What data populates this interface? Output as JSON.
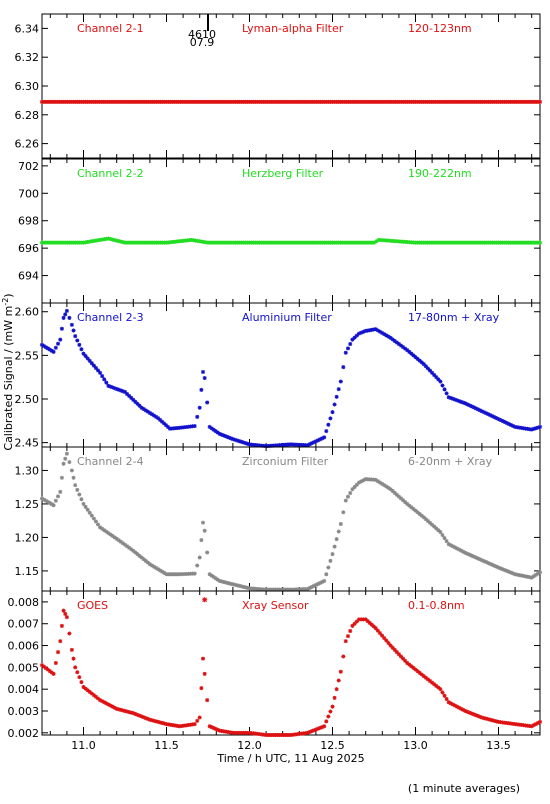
{
  "y_axis_label": "Calibrated Signal / (mW m",
  "y_axis_label_sup": "-2",
  "y_axis_label_end": ")",
  "x_axis_label": "Time / h UTC, 11 Aug 2025",
  "footnote": "(1 minute averages)",
  "marker_top": "4610",
  "marker_bottom": "07.9",
  "x_ticks": [
    "11.0",
    "11.5",
    "12.0",
    "12.5",
    "13.0",
    "13.5"
  ],
  "chart_data": [
    {
      "type": "scatter",
      "channel_label": "Channel 2-1",
      "filter_label": "Lyman-alpha Filter",
      "band_label": "120-123nm",
      "color": "#dd1111",
      "xlim": [
        10.75,
        13.75
      ],
      "ylim": [
        6.25,
        6.35
      ],
      "y_ticks": [
        "6.26",
        "6.28",
        "6.30",
        "6.32",
        "6.34"
      ],
      "y_tick_values": [
        6.26,
        6.28,
        6.3,
        6.32,
        6.34
      ],
      "x": [
        10.75,
        11.0,
        11.25,
        11.5,
        11.75,
        12.0,
        12.25,
        12.5,
        12.75,
        13.0,
        13.25,
        13.5,
        13.75
      ],
      "y": [
        6.289,
        6.289,
        6.289,
        6.289,
        6.289,
        6.289,
        6.289,
        6.289,
        6.289,
        6.289,
        6.289,
        6.289,
        6.289
      ]
    },
    {
      "type": "scatter",
      "channel_label": "Channel 2-2",
      "filter_label": "Herzberg Filter",
      "band_label": "190-222nm",
      "color": "#22dd22",
      "xlim": [
        10.75,
        13.75
      ],
      "ylim": [
        692,
        702.5
      ],
      "y_ticks": [
        "694",
        "696",
        "698",
        "700",
        "702"
      ],
      "y_tick_values": [
        694,
        696,
        698,
        700,
        702
      ],
      "x": [
        10.75,
        11.0,
        11.15,
        11.25,
        11.5,
        11.65,
        11.75,
        12.0,
        12.25,
        12.5,
        12.75,
        12.78,
        13.0,
        13.25,
        13.5,
        13.75
      ],
      "y": [
        696.4,
        696.4,
        696.7,
        696.4,
        696.4,
        696.6,
        696.4,
        696.4,
        696.4,
        696.4,
        696.4,
        696.6,
        696.4,
        696.4,
        696.4,
        696.4
      ]
    },
    {
      "type": "scatter",
      "channel_label": "Channel 2-3",
      "filter_label": "Aluminium Filter",
      "band_label": "17-80nm + Xray",
      "color": "#1111cc",
      "xlim": [
        10.75,
        13.75
      ],
      "ylim": [
        2.445,
        2.61
      ],
      "y_ticks": [
        "2.45",
        "2.50",
        "2.55",
        "2.60"
      ],
      "y_tick_values": [
        2.45,
        2.5,
        2.55,
        2.6
      ],
      "x": [
        10.75,
        10.82,
        10.86,
        10.88,
        10.9,
        10.93,
        10.95,
        11.0,
        11.1,
        11.15,
        11.25,
        11.35,
        11.45,
        11.52,
        11.58,
        11.67,
        11.7,
        11.72,
        11.73,
        11.76,
        11.82,
        11.9,
        12.0,
        12.1,
        12.25,
        12.35,
        12.45,
        12.5,
        12.55,
        12.58,
        12.62,
        12.66,
        12.7,
        12.76,
        12.85,
        12.95,
        13.05,
        13.15,
        13.2,
        13.3,
        13.4,
        13.5,
        13.6,
        13.7,
        13.75
      ],
      "y": [
        2.562,
        2.554,
        2.568,
        2.593,
        2.601,
        2.585,
        2.572,
        2.552,
        2.53,
        2.515,
        2.508,
        2.49,
        2.478,
        2.466,
        2.467,
        2.469,
        2.49,
        2.531,
        2.524,
        2.468,
        2.46,
        2.454,
        2.448,
        2.446,
        2.448,
        2.447,
        2.456,
        2.485,
        2.52,
        2.553,
        2.568,
        2.575,
        2.578,
        2.58,
        2.57,
        2.556,
        2.54,
        2.52,
        2.502,
        2.495,
        2.486,
        2.477,
        2.468,
        2.465,
        2.468
      ]
    },
    {
      "type": "scatter",
      "channel_label": "Channel 2-4",
      "filter_label": "Zirconium Filter",
      "band_label": "6-20nm + Xray",
      "color": "#888888",
      "xlim": [
        10.75,
        13.75
      ],
      "ylim": [
        1.12,
        1.335
      ],
      "y_ticks": [
        "1.15",
        "1.20",
        "1.25",
        "1.30"
      ],
      "y_tick_values": [
        1.15,
        1.2,
        1.25,
        1.3
      ],
      "x": [
        10.75,
        10.82,
        10.86,
        10.88,
        10.9,
        10.93,
        10.95,
        11.0,
        11.1,
        11.2,
        11.3,
        11.4,
        11.5,
        11.58,
        11.67,
        11.7,
        11.72,
        11.73,
        11.76,
        11.82,
        11.9,
        12.0,
        12.1,
        12.25,
        12.35,
        12.45,
        12.5,
        12.55,
        12.58,
        12.62,
        12.66,
        12.7,
        12.76,
        12.85,
        12.95,
        13.05,
        13.15,
        13.2,
        13.3,
        13.4,
        13.5,
        13.6,
        13.7,
        13.75
      ],
      "y": [
        1.258,
        1.248,
        1.268,
        1.31,
        1.325,
        1.3,
        1.278,
        1.25,
        1.215,
        1.198,
        1.18,
        1.16,
        1.145,
        1.145,
        1.146,
        1.17,
        1.222,
        1.21,
        1.145,
        1.135,
        1.13,
        1.124,
        1.122,
        1.122,
        1.123,
        1.135,
        1.175,
        1.22,
        1.255,
        1.272,
        1.282,
        1.287,
        1.286,
        1.272,
        1.25,
        1.23,
        1.208,
        1.19,
        1.177,
        1.166,
        1.155,
        1.145,
        1.14,
        1.148
      ]
    },
    {
      "type": "scatter",
      "channel_label": "GOES",
      "filter_label": "Xray Sensor",
      "band_label": "0.1-0.8nm",
      "color": "#dd1111",
      "xlim": [
        10.75,
        13.75
      ],
      "ylim": [
        0.0019,
        0.0085
      ],
      "y_ticks": [
        "0.002",
        "0.003",
        "0.004",
        "0.005",
        "0.006",
        "0.007",
        "0.008"
      ],
      "y_tick_values": [
        0.002,
        0.003,
        0.004,
        0.005,
        0.006,
        0.007,
        0.008
      ],
      "x": [
        10.75,
        10.82,
        10.86,
        10.88,
        10.9,
        10.93,
        10.95,
        11.0,
        11.1,
        11.2,
        11.3,
        11.4,
        11.5,
        11.58,
        11.67,
        11.7,
        11.72,
        11.73,
        11.76,
        11.82,
        11.9,
        12.0,
        12.1,
        12.25,
        12.35,
        12.45,
        12.5,
        12.55,
        12.58,
        12.62,
        12.66,
        12.7,
        12.76,
        12.85,
        12.95,
        13.05,
        13.15,
        13.2,
        13.3,
        13.4,
        13.5,
        13.6,
        13.7,
        13.75
      ],
      "y": [
        0.0051,
        0.0047,
        0.0062,
        0.0076,
        0.0073,
        0.0058,
        0.005,
        0.0041,
        0.0035,
        0.0031,
        0.0029,
        0.0026,
        0.0024,
        0.0023,
        0.0024,
        0.0027,
        0.0054,
        0.0047,
        0.0023,
        0.0021,
        0.002,
        0.002,
        0.0019,
        0.0019,
        0.002,
        0.0023,
        0.0032,
        0.0048,
        0.0062,
        0.0069,
        0.0072,
        0.0072,
        0.0068,
        0.006,
        0.0052,
        0.0046,
        0.004,
        0.0034,
        0.003,
        0.0027,
        0.0025,
        0.0024,
        0.0023,
        0.0025
      ],
      "extra_points": [
        {
          "x": 11.73,
          "y": 0.0081
        }
      ]
    }
  ]
}
